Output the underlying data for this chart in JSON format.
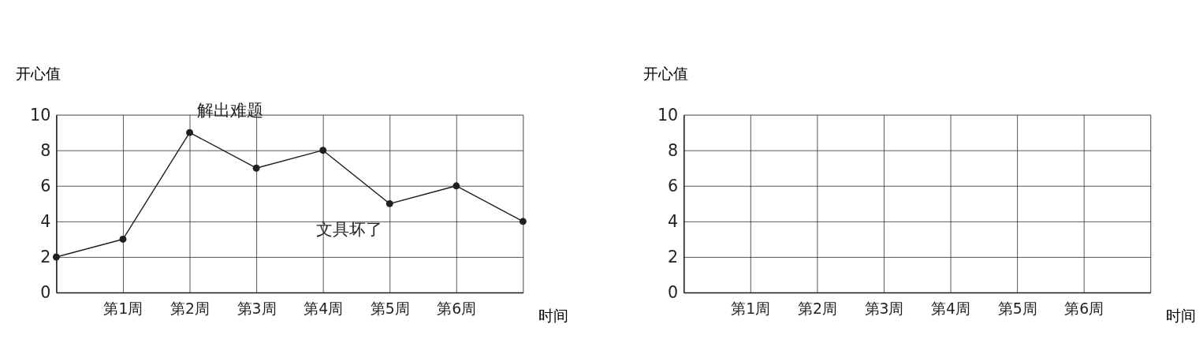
{
  "chart_data": [
    {
      "type": "line",
      "xlabel": "时间",
      "ylabel": "开心值",
      "categories": [
        null,
        "第1周",
        "第2周",
        "第3周",
        "第4周",
        "第5周",
        "第6周",
        null
      ],
      "values": [
        2,
        3,
        9,
        7,
        8,
        5,
        6,
        4
      ],
      "color": "#231f20",
      "ylim": [
        0,
        10
      ],
      "yticks": [
        0,
        2,
        4,
        6,
        8,
        10
      ],
      "grid": true,
      "marker": "circle",
      "line_style": "solid",
      "annotations": [
        {
          "text": "解出难题",
          "x": "第2周",
          "y": 9
        },
        {
          "text": "文具坏了",
          "x": "第5周",
          "y": 5
        }
      ]
    },
    {
      "type": "line",
      "xlabel": "时间",
      "ylabel": "开心值",
      "categories": [
        null,
        "第1周",
        "第2周",
        "第3周",
        "第4周",
        "第5周",
        "第6周",
        null
      ],
      "values": [
        null,
        null,
        null,
        null,
        null,
        null,
        null,
        null
      ],
      "color": "#231f20",
      "ylim": [
        0,
        10
      ],
      "yticks": [
        0,
        2,
        4,
        6,
        8,
        10
      ],
      "grid": true,
      "marker": "circle",
      "line_style": "solid"
    }
  ]
}
